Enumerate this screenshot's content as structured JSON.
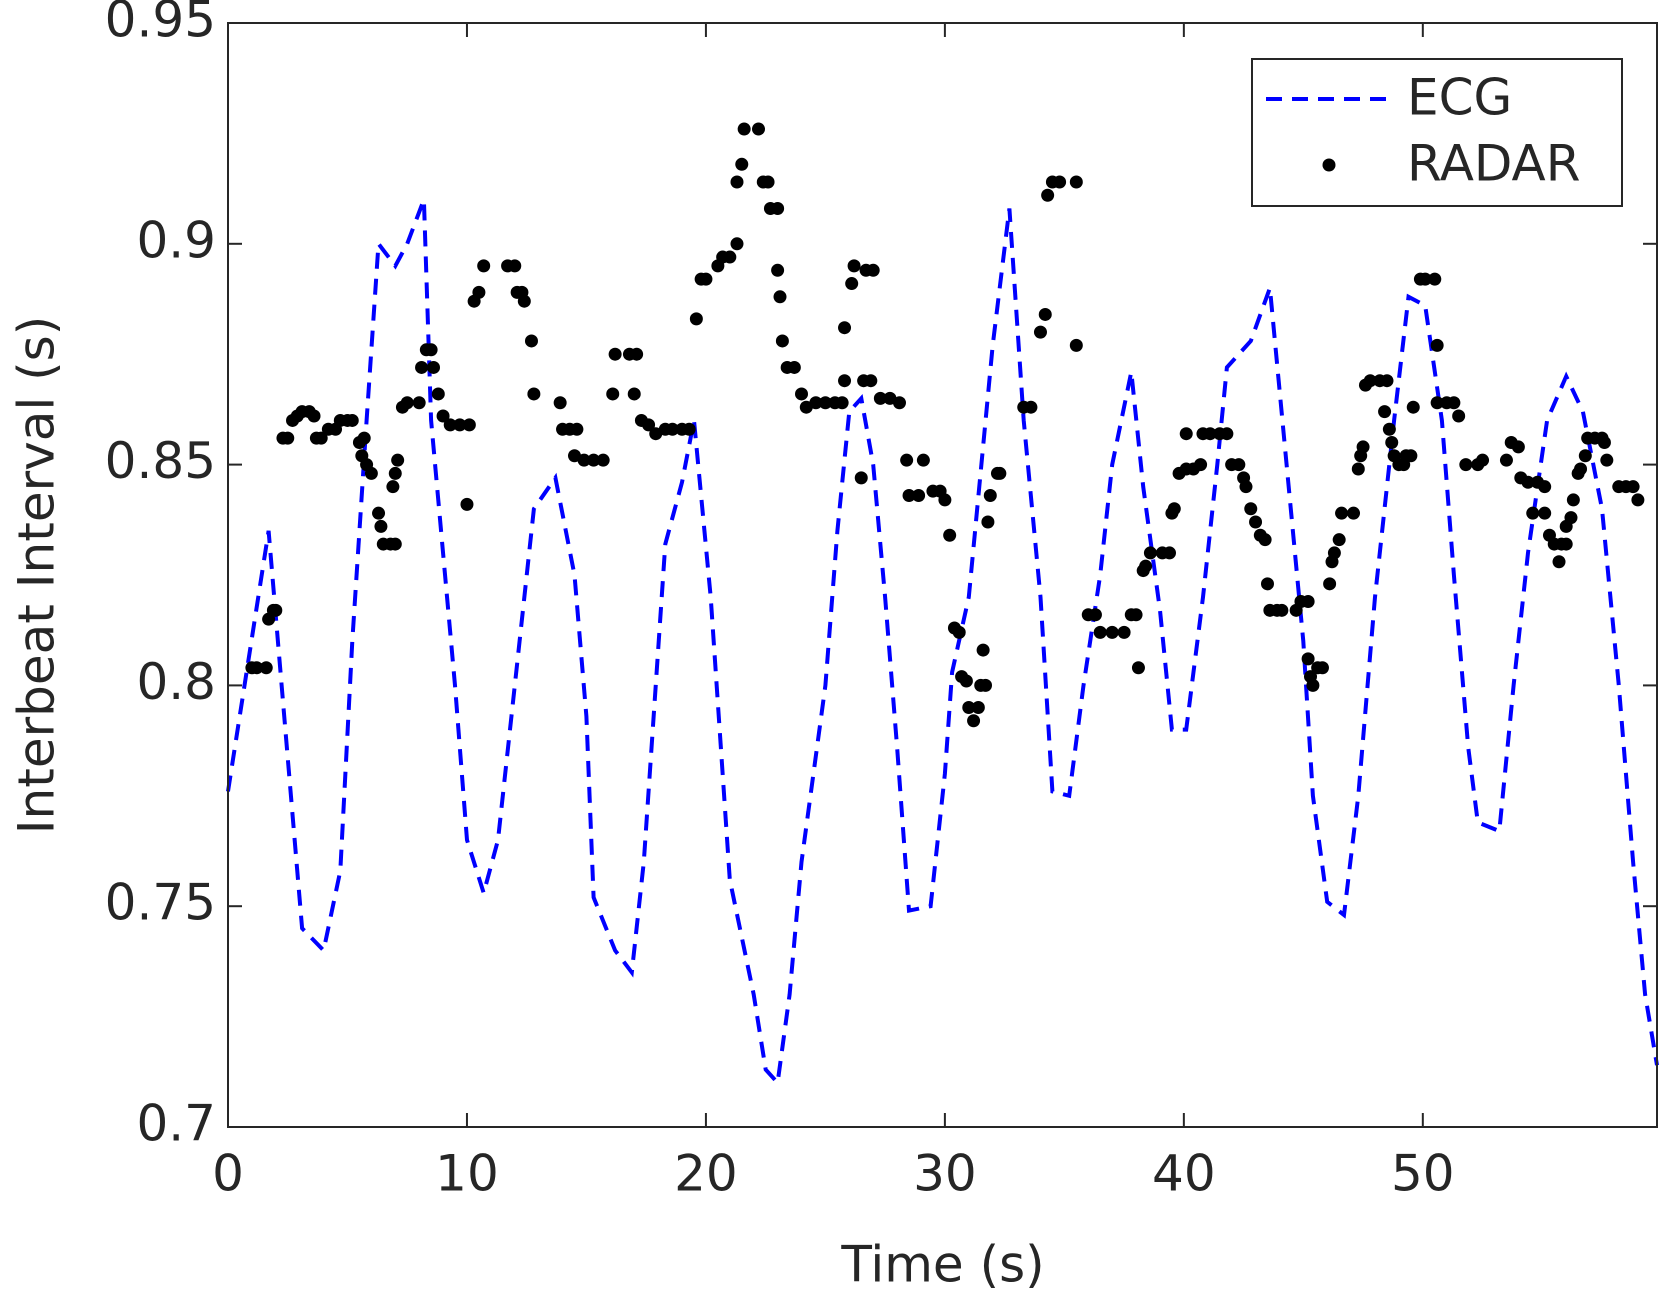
{
  "chart_data": {
    "type": "line",
    "x_label": "Time (s)",
    "y_label": "Interbeat Interval (s)",
    "xlim": [
      0,
      59.8
    ],
    "ylim": [
      0.7,
      0.95
    ],
    "xticks": [
      0,
      10,
      20,
      30,
      40,
      50
    ],
    "yticks": [
      0.7,
      0.75,
      0.8,
      0.85,
      0.9,
      0.95
    ],
    "legend": "northeast",
    "series": [
      {
        "name": "ECG",
        "color": "#0000ff",
        "style": "dashed",
        "x": [
          0,
          1.7,
          3.1,
          4,
          4.7,
          5.2,
          5.8,
          6.3,
          7.0,
          7.5,
          8.2,
          8.5,
          9.5,
          10,
          10.7,
          11.3,
          12,
          12.8,
          13.7,
          14.5,
          15,
          15.3,
          16.2,
          16.9,
          17.4,
          18.3,
          19.0,
          19.5,
          20.2,
          21,
          22,
          22.5,
          23,
          23.5,
          24,
          25,
          25.5,
          26,
          26.5,
          27,
          27.5,
          28,
          28.5,
          29.4,
          30,
          30.3,
          31,
          32,
          32.7,
          33.3,
          34,
          34.5,
          35.2,
          35.8,
          36.5,
          37,
          37.8,
          38.3,
          39,
          39.5,
          40.1,
          40.8,
          41.4,
          41.8,
          42.8,
          43.6,
          44.3,
          45,
          45.4,
          46.0,
          46.7,
          47.3,
          48.0,
          48.8,
          49.4,
          50.1,
          50.8,
          51.3,
          51.9,
          52.3,
          53.2,
          53.8,
          54.4,
          55.2,
          56.0,
          56.7,
          57.5,
          58.2,
          58.8,
          59.3,
          59.8
        ],
        "values": [
          0.776,
          0.835,
          0.745,
          0.74,
          0.758,
          0.81,
          0.86,
          0.9,
          0.895,
          0.9,
          0.91,
          0.86,
          0.8,
          0.765,
          0.753,
          0.765,
          0.8,
          0.84,
          0.847,
          0.825,
          0.793,
          0.752,
          0.74,
          0.735,
          0.76,
          0.832,
          0.846,
          0.86,
          0.82,
          0.756,
          0.73,
          0.713,
          0.71,
          0.73,
          0.76,
          0.8,
          0.835,
          0.862,
          0.865,
          0.85,
          0.82,
          0.786,
          0.749,
          0.75,
          0.78,
          0.803,
          0.82,
          0.877,
          0.908,
          0.86,
          0.82,
          0.776,
          0.775,
          0.8,
          0.825,
          0.85,
          0.871,
          0.845,
          0.817,
          0.79,
          0.79,
          0.82,
          0.85,
          0.872,
          0.878,
          0.89,
          0.85,
          0.81,
          0.775,
          0.751,
          0.748,
          0.775,
          0.82,
          0.86,
          0.888,
          0.886,
          0.86,
          0.825,
          0.786,
          0.769,
          0.767,
          0.8,
          0.83,
          0.86,
          0.87,
          0.862,
          0.84,
          0.8,
          0.76,
          0.73,
          0.714
        ]
      },
      {
        "name": "RADAR",
        "color": "#000000",
        "style": "dots",
        "x": [
          1,
          1.2,
          1.6,
          1.7,
          1.9,
          2.0,
          2.3,
          2.5,
          2.7,
          2.9,
          3.1,
          3.4,
          3.6,
          3.7,
          3.9,
          4.2,
          4.5,
          4.7,
          5.0,
          5.2,
          5.5,
          5.7,
          5.6,
          5.8,
          6.0,
          6.3,
          6.4,
          6.5,
          6.8,
          7.0,
          6.9,
          7.0,
          7.1,
          7.3,
          7.5,
          8.0,
          8.1,
          8.3,
          8.5,
          8.6,
          8.8,
          9.0,
          9.3,
          9.7,
          10.1,
          10.0,
          10.3,
          10.5,
          10.7,
          11.7,
          12.0,
          12.1,
          12.3,
          12.4,
          12.7,
          12.8,
          13.9,
          14.0,
          14.3,
          14.6,
          14.5,
          14.9,
          15.3,
          15.7,
          16.1,
          16.2,
          16.8,
          17.1,
          17.0,
          17.3,
          17.6,
          17.9,
          18.3,
          18.6,
          19.0,
          19.3,
          19.6,
          19.8,
          20.0,
          20.5,
          20.7,
          21.0,
          21.3,
          21.3,
          21.5,
          21.6,
          22.2,
          22.4,
          22.6,
          22.7,
          23.0,
          23.0,
          23.1,
          23.2,
          23.4,
          23.7,
          24.0,
          24.2,
          24.6,
          25.0,
          25.4,
          25.7,
          25.8,
          25.8,
          26.1,
          26.2,
          26.7,
          27.0,
          26.6,
          26.9,
          26.5,
          27.3,
          27.7,
          28.1,
          28.4,
          28.5,
          28.9,
          29.1,
          29.5,
          29.8,
          30.0,
          30.2,
          30.4,
          30.6,
          30.7,
          30.9,
          31.0,
          31.2,
          31.4,
          31.5,
          31.7,
          31.6,
          31.8,
          31.9,
          32.2,
          32.3,
          33.3,
          33.6,
          34.0,
          34.2,
          34.3,
          34.5,
          34.8,
          35.5,
          35.5,
          36.0,
          36.3,
          36.5,
          37.0,
          37.5,
          37.8,
          38.0,
          38.1,
          38.3,
          38.4,
          38.6,
          39.1,
          39.4,
          39.5,
          39.6,
          39.8,
          40.1,
          40.1,
          40.4,
          40.7,
          40.8,
          41.1,
          41.5,
          41.8,
          42.0,
          42.3,
          42.5,
          42.6,
          42.8,
          43.0,
          43.2,
          43.4,
          43.5,
          43.6,
          43.9,
          44.1,
          44.7,
          44.9,
          45.2,
          45.2,
          45.3,
          45.4,
          45.6,
          45.8,
          46.1,
          46.2,
          46.3,
          46.5,
          46.6,
          47.1,
          47.3,
          47.4,
          47.5,
          47.6,
          47.8,
          48.2,
          48.5,
          48.4,
          48.6,
          48.7,
          48.8,
          49.0,
          49.2,
          49.3,
          49.5,
          49.6,
          49.9,
          50.5,
          50.1,
          50.6,
          50.6,
          51.0,
          51.3,
          51.5,
          51.8,
          52.3,
          52.5,
          53.5,
          53.7,
          54.0,
          54.1,
          54.4,
          54.8,
          54.6,
          55.1,
          55.1,
          55.3,
          55.5,
          55.8,
          55.7,
          56.0,
          56.0,
          56.2,
          56.3,
          56.5,
          56.6,
          56.8,
          56.9,
          57.2,
          57.5,
          57.6,
          57.7,
          58.2,
          58.5,
          58.8,
          59.0
        ],
        "values": [
          0.804,
          0.804,
          0.804,
          0.815,
          0.817,
          0.817,
          0.856,
          0.856,
          0.86,
          0.861,
          0.862,
          0.862,
          0.861,
          0.856,
          0.856,
          0.858,
          0.858,
          0.86,
          0.86,
          0.86,
          0.855,
          0.856,
          0.852,
          0.85,
          0.848,
          0.839,
          0.836,
          0.832,
          0.832,
          0.832,
          0.845,
          0.848,
          0.851,
          0.863,
          0.864,
          0.864,
          0.872,
          0.876,
          0.876,
          0.872,
          0.866,
          0.861,
          0.859,
          0.859,
          0.859,
          0.841,
          0.887,
          0.889,
          0.895,
          0.895,
          0.895,
          0.889,
          0.889,
          0.887,
          0.878,
          0.866,
          0.864,
          0.858,
          0.858,
          0.858,
          0.852,
          0.851,
          0.851,
          0.851,
          0.866,
          0.875,
          0.875,
          0.875,
          0.866,
          0.86,
          0.859,
          0.857,
          0.858,
          0.858,
          0.858,
          0.858,
          0.883,
          0.892,
          0.892,
          0.895,
          0.897,
          0.897,
          0.9,
          0.914,
          0.918,
          0.926,
          0.926,
          0.914,
          0.914,
          0.908,
          0.908,
          0.894,
          0.888,
          0.878,
          0.872,
          0.872,
          0.866,
          0.863,
          0.864,
          0.864,
          0.864,
          0.864,
          0.881,
          0.869,
          0.891,
          0.895,
          0.894,
          0.894,
          0.869,
          0.869,
          0.847,
          0.865,
          0.865,
          0.864,
          0.851,
          0.843,
          0.843,
          0.851,
          0.844,
          0.844,
          0.842,
          0.834,
          0.813,
          0.812,
          0.802,
          0.801,
          0.795,
          0.792,
          0.795,
          0.8,
          0.8,
          0.808,
          0.837,
          0.843,
          0.848,
          0.848,
          0.863,
          0.863,
          0.88,
          0.884,
          0.911,
          0.914,
          0.914,
          0.914,
          0.877,
          0.816,
          0.816,
          0.812,
          0.812,
          0.812,
          0.816,
          0.816,
          0.804,
          0.826,
          0.827,
          0.83,
          0.83,
          0.83,
          0.839,
          0.84,
          0.848,
          0.849,
          0.857,
          0.849,
          0.85,
          0.857,
          0.857,
          0.857,
          0.857,
          0.85,
          0.85,
          0.847,
          0.845,
          0.84,
          0.837,
          0.834,
          0.833,
          0.823,
          0.817,
          0.817,
          0.817,
          0.817,
          0.819,
          0.819,
          0.806,
          0.802,
          0.8,
          0.804,
          0.804,
          0.823,
          0.828,
          0.83,
          0.833,
          0.839,
          0.839,
          0.849,
          0.852,
          0.854,
          0.868,
          0.869,
          0.869,
          0.869,
          0.862,
          0.858,
          0.855,
          0.852,
          0.85,
          0.85,
          0.852,
          0.852,
          0.863,
          0.892,
          0.892,
          0.892,
          0.877,
          0.864,
          0.864,
          0.864,
          0.861,
          0.85,
          0.85,
          0.851,
          0.851,
          0.855,
          0.854,
          0.847,
          0.846,
          0.846,
          0.839,
          0.845,
          0.839,
          0.834,
          0.832,
          0.832,
          0.828,
          0.832,
          0.836,
          0.838,
          0.842,
          0.848,
          0.849,
          0.852,
          0.856,
          0.856,
          0.856,
          0.855,
          0.851,
          0.845,
          0.845,
          0.845,
          0.842
        ]
      }
    ]
  }
}
